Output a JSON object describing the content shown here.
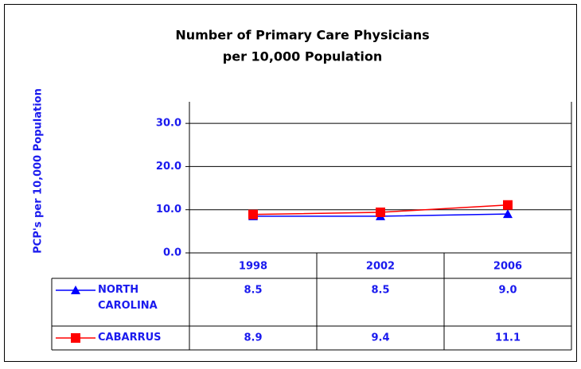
{
  "chart_data": {
    "type": "line",
    "title": "Number of Primary Care Physicians",
    "subtitle": "per 10,000 Population",
    "y_label": "PCP's per 10,000 Population",
    "categories": [
      "1998",
      "2002",
      "2006"
    ],
    "series": [
      {
        "name": "NORTH CAROLINA",
        "color": "#0000ff",
        "marker": "triangle",
        "values": [
          8.5,
          8.5,
          9.0
        ],
        "value_labels": [
          "8.5",
          "8.5",
          "9.0"
        ]
      },
      {
        "name": "CABARRUS",
        "color": "#ff0000",
        "marker": "square",
        "values": [
          8.9,
          9.4,
          11.1
        ],
        "value_labels": [
          "8.9",
          "9.4",
          "11.1"
        ]
      }
    ],
    "ylim": [
      0,
      35
    ],
    "yticks": [
      {
        "value": 0,
        "label": "0.0"
      },
      {
        "value": 10,
        "label": "10.0"
      },
      {
        "value": 20,
        "label": "20.0"
      },
      {
        "value": 30,
        "label": "30.0"
      }
    ],
    "grid": true
  }
}
